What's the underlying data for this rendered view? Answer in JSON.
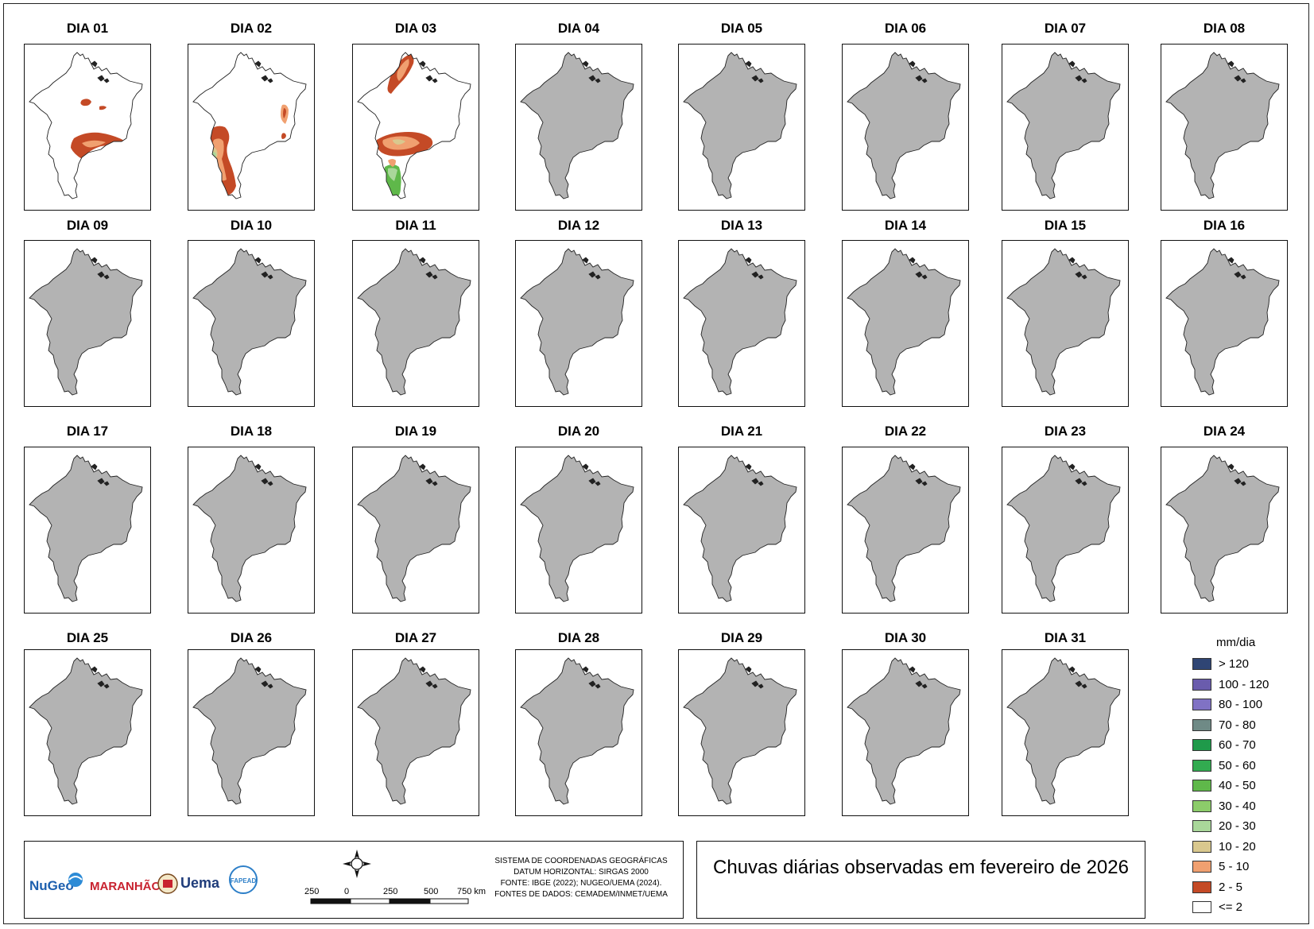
{
  "title": "Chuvas diárias observadas em fevereiro de 2026",
  "days": [
    {
      "label": "DIA 01",
      "rain": "d1"
    },
    {
      "label": "DIA 02",
      "rain": "d2"
    },
    {
      "label": "DIA 03",
      "rain": "d3"
    },
    {
      "label": "DIA 04",
      "rain": "none"
    },
    {
      "label": "DIA 05",
      "rain": "none"
    },
    {
      "label": "DIA 06",
      "rain": "none"
    },
    {
      "label": "DIA 07",
      "rain": "none"
    },
    {
      "label": "DIA 08",
      "rain": "none"
    },
    {
      "label": "DIA 09",
      "rain": "none"
    },
    {
      "label": "DIA 10",
      "rain": "none"
    },
    {
      "label": "DIA 11",
      "rain": "none"
    },
    {
      "label": "DIA 12",
      "rain": "none"
    },
    {
      "label": "DIA 13",
      "rain": "none"
    },
    {
      "label": "DIA 14",
      "rain": "none"
    },
    {
      "label": "DIA 15",
      "rain": "none"
    },
    {
      "label": "DIA 16",
      "rain": "none"
    },
    {
      "label": "DIA 17",
      "rain": "none"
    },
    {
      "label": "DIA 18",
      "rain": "none"
    },
    {
      "label": "DIA 19",
      "rain": "none"
    },
    {
      "label": "DIA 20",
      "rain": "none"
    },
    {
      "label": "DIA 21",
      "rain": "none"
    },
    {
      "label": "DIA 22",
      "rain": "none"
    },
    {
      "label": "DIA 23",
      "rain": "none"
    },
    {
      "label": "DIA 24",
      "rain": "none"
    },
    {
      "label": "DIA 25",
      "rain": "none"
    },
    {
      "label": "DIA 26",
      "rain": "none"
    },
    {
      "label": "DIA 27",
      "rain": "none"
    },
    {
      "label": "DIA 28",
      "rain": "none"
    },
    {
      "label": "DIA 29",
      "rain": "none"
    },
    {
      "label": "DIA 30",
      "rain": "none"
    },
    {
      "label": "DIA 31",
      "rain": "none"
    }
  ],
  "legend": {
    "title": "mm/dia",
    "items": [
      {
        "label": "> 120",
        "color": "#2f4574"
      },
      {
        "label": "100 - 120",
        "color": "#6a5cad"
      },
      {
        "label": "80 - 100",
        "color": "#8072c4"
      },
      {
        "label": "70 - 80",
        "color": "#6f8a86"
      },
      {
        "label": "60 - 70",
        "color": "#1f9a4a"
      },
      {
        "label": "50 - 60",
        "color": "#32ab50"
      },
      {
        "label": "40 - 50",
        "color": "#5fb84a"
      },
      {
        "label": "30 - 40",
        "color": "#8ccc6a"
      },
      {
        "label": "20 - 30",
        "color": "#a9d79a"
      },
      {
        "label": "10 - 20",
        "color": "#d9c88e"
      },
      {
        "label": "5 - 10",
        "color": "#f0a070"
      },
      {
        "label": "2 - 5",
        "color": "#c44a26"
      },
      {
        "label": "<= 2",
        "color": "#ffffff"
      }
    ]
  },
  "footer": {
    "crs_lines": [
      "SISTEMA DE COORDENADAS GEOGRÁFICAS",
      "DATUM HORIZONTAL: SIRGAS 2000",
      "FONTE: IBGE (2022); NUGEO/UEMA (2024).",
      "FONTES DE DADOS: CEMADEM/INMET/UEMA"
    ],
    "scale_labels": [
      "250",
      "0",
      "250",
      "500",
      "750 km"
    ],
    "logos": [
      "NuGeo",
      "MARANHÃO",
      "Uema",
      "FAPEAD"
    ]
  },
  "colors": {
    "state_no_data": "#b3b3b3",
    "outline": "#222222",
    "rain_low": "#c44a26",
    "rain_5_10": "#f0a070",
    "rain_10_20": "#d9c88e",
    "rain_20_30": "#a9d79a",
    "rain_40_50": "#5fb84a"
  }
}
